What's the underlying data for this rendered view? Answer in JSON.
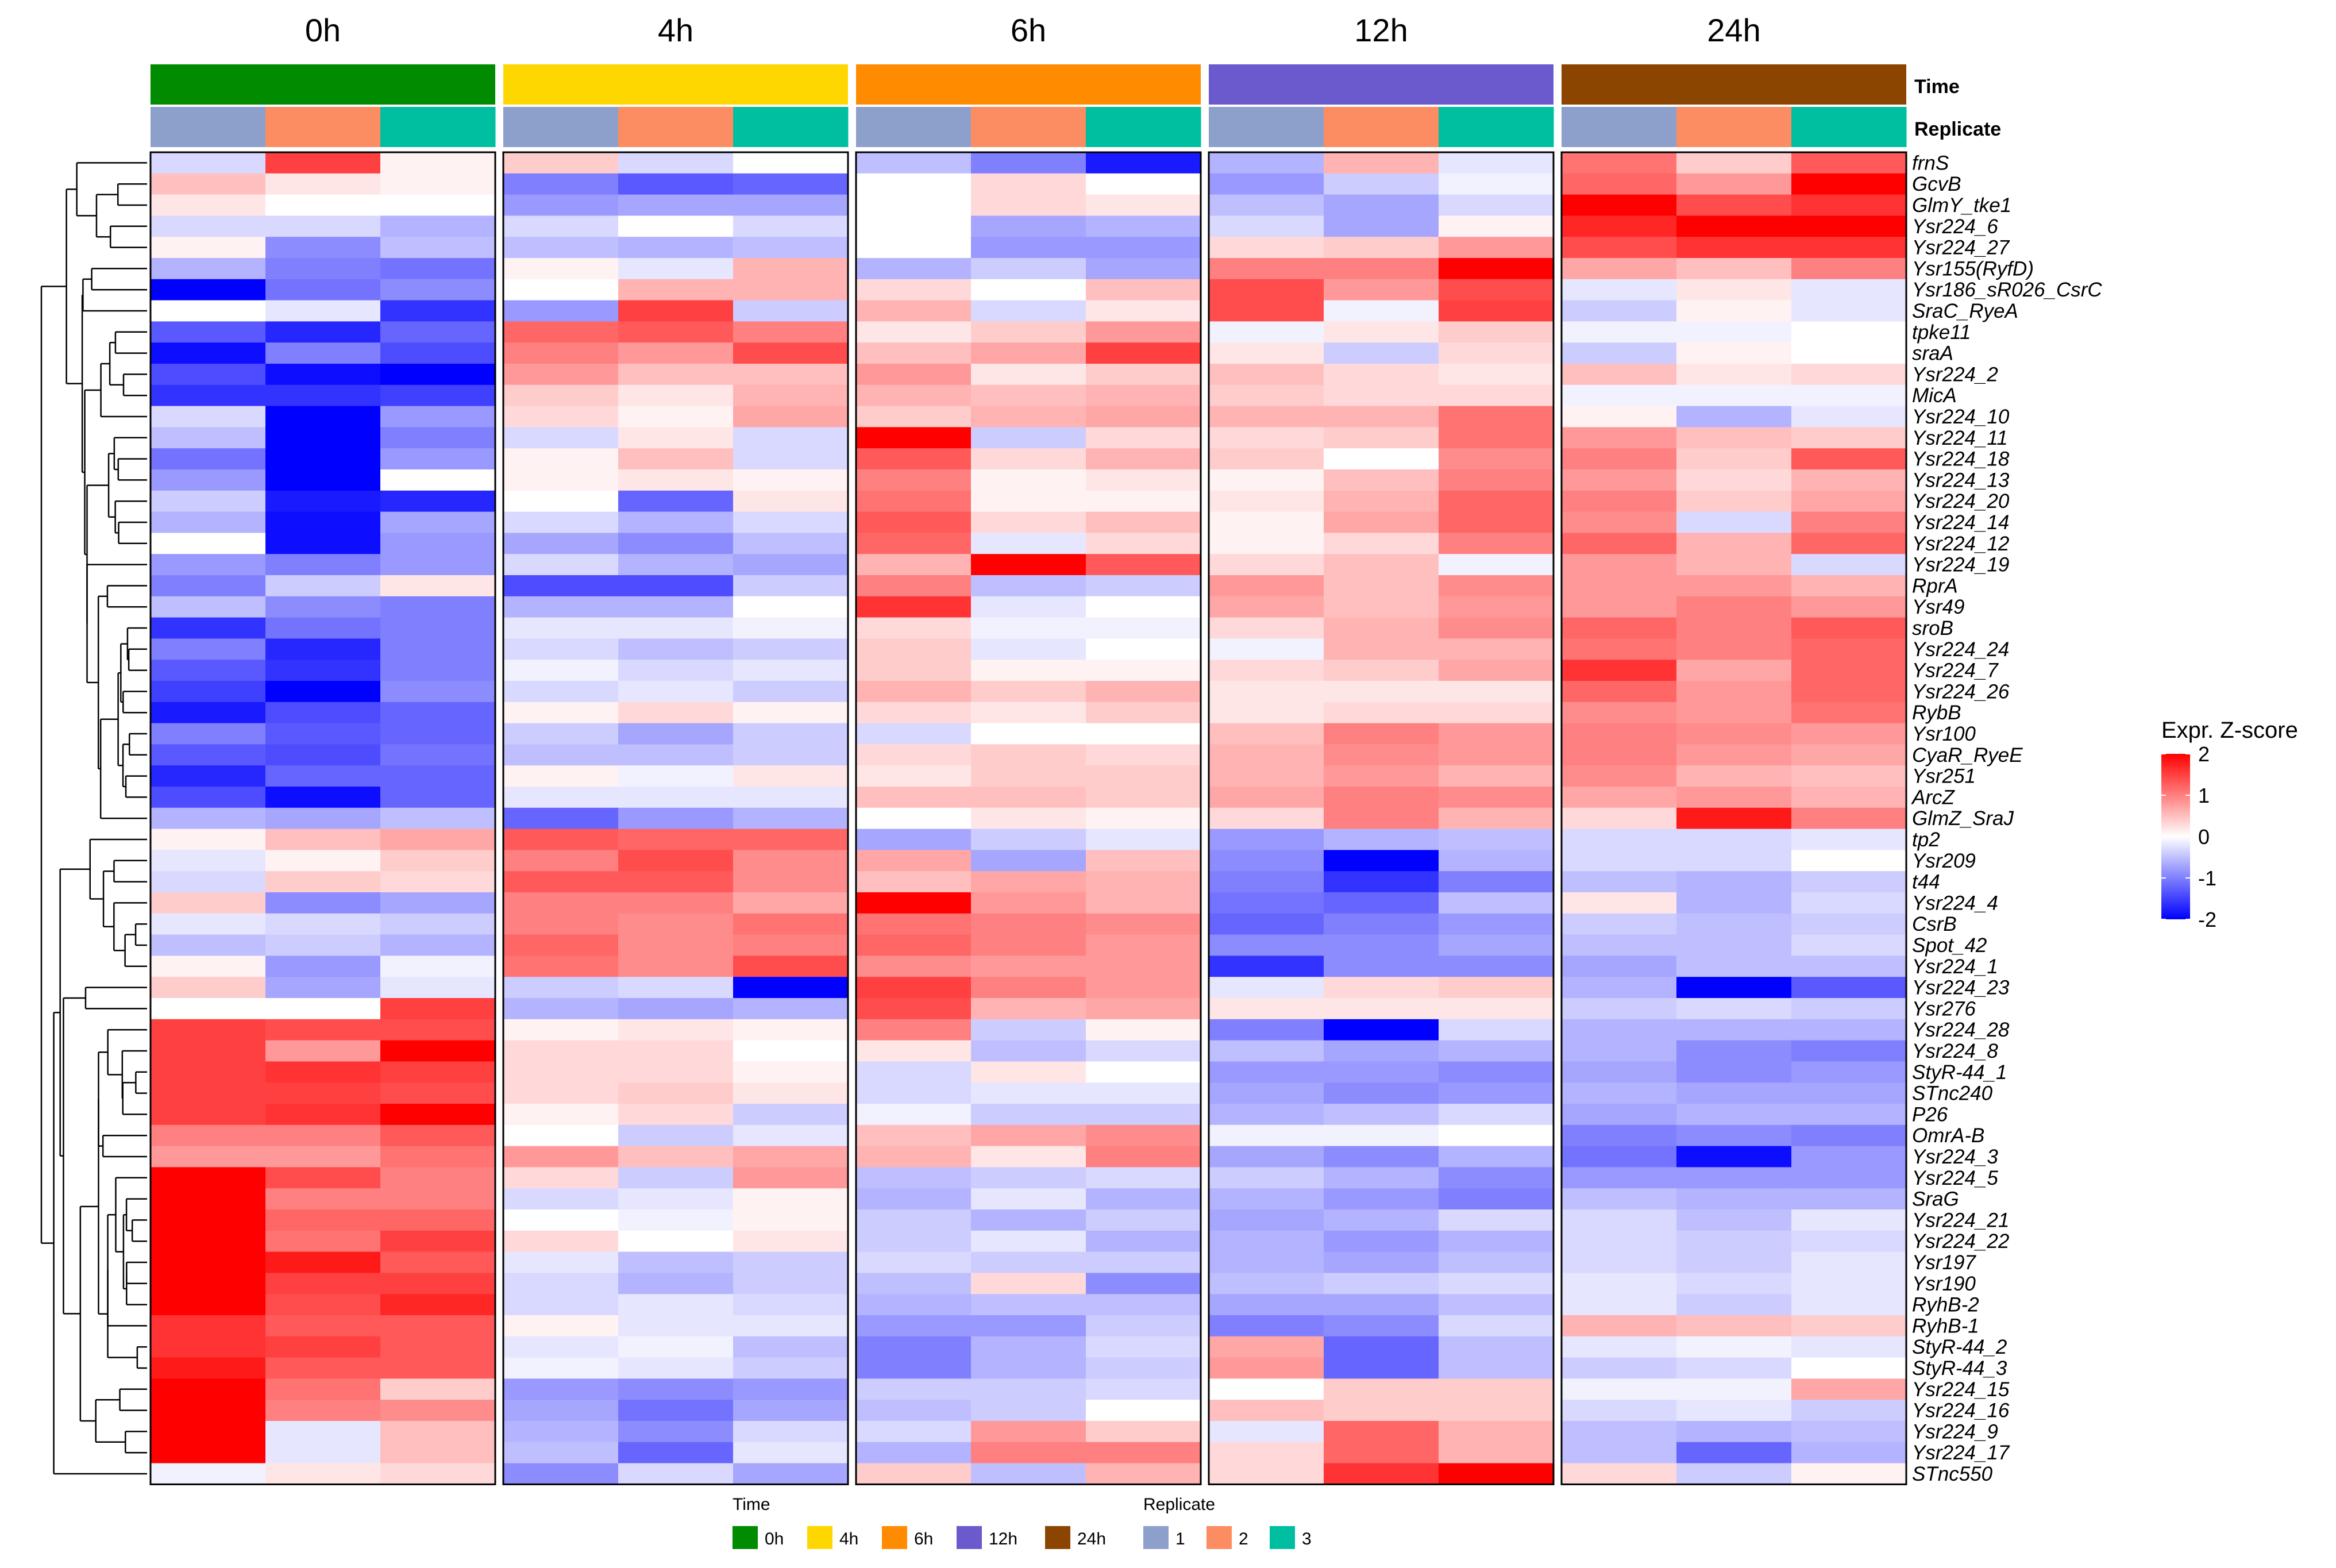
{
  "chart_data": {
    "type": "heatmap",
    "title": "",
    "time_groups": [
      "0h",
      "4h",
      "6h",
      "12h",
      "24h"
    ],
    "annotation_labels": {
      "time": "Time",
      "replicate": "Replicate"
    },
    "replicates": [
      "1",
      "2",
      "3"
    ],
    "time_colors": {
      "0h": "#008B00",
      "4h": "#FFD700",
      "6h": "#FF8C00",
      "12h": "#6A5ACD",
      "24h": "#8B4500"
    },
    "replicate_colors": {
      "1": "#8DA0CB",
      "2": "#FC8D62",
      "3": "#00BFA0"
    },
    "color_scale": {
      "title": "Expr. Z-score",
      "min": -2,
      "max": 2,
      "ticks": [
        2,
        1,
        0,
        -1,
        -2
      ],
      "low": "#0000FF",
      "mid": "#FFFFFF",
      "high": "#FF0000"
    },
    "legend": {
      "time_title": "Time",
      "replicate_title": "Replicate",
      "time_labels": [
        "0h",
        "4h",
        "6h",
        "12h",
        "24h"
      ],
      "replicate_labels": [
        "1",
        "2",
        "3"
      ]
    },
    "row_labels": [
      "frnS",
      "GcvB",
      "GlmY_tke1",
      "Ysr224_6",
      "Ysr224_27",
      "Ysr155(RyfD)",
      "Ysr186_sR026_CsrC",
      "SraC_RyeA",
      "tpke11",
      "sraA",
      "Ysr224_2",
      "MicA",
      "Ysr224_10",
      "Ysr224_11",
      "Ysr224_18",
      "Ysr224_13",
      "Ysr224_20",
      "Ysr224_14",
      "Ysr224_12",
      "Ysr224_19",
      "RprA",
      "Ysr49",
      "sroB",
      "Ysr224_24",
      "Ysr224_7",
      "Ysr224_26",
      "RybB",
      "Ysr100",
      "CyaR_RyeE",
      "Ysr251",
      "ArcZ",
      "GlmZ_SraJ",
      "tp2",
      "Ysr209",
      "t44",
      "Ysr224_4",
      "CsrB",
      "Spot_42",
      "Ysr224_1",
      "Ysr224_23",
      "Ysr276",
      "Ysr224_28",
      "Ysr224_8",
      "StyR-44_1",
      "STnc240",
      "P26",
      "OmrA-B",
      "Ysr224_3",
      "Ysr224_5",
      "SraG",
      "Ysr224_21",
      "Ysr224_22",
      "Ysr197",
      "Ysr190",
      "RyhB-2",
      "RyhB-1",
      "StyR-44_2",
      "StyR-44_3",
      "Ysr224_15",
      "Ysr224_16",
      "Ysr224_9",
      "Ysr224_17",
      "STnc550"
    ],
    "values": [
      [
        -0.3,
        1.5,
        0.1,
        0.4,
        -0.3,
        0.0,
        -0.5,
        -1.0,
        -1.8,
        -0.6,
        0.6,
        -0.2,
        1.1,
        0.4,
        1.3
      ],
      [
        0.5,
        0.2,
        0.1,
        -1.0,
        -1.3,
        -1.2,
        0.0,
        0.3,
        0.0,
        -0.8,
        -0.4,
        -0.1,
        1.2,
        0.8,
        2.0
      ],
      [
        0.2,
        0.0,
        0.0,
        -0.8,
        -0.7,
        -0.7,
        0.0,
        0.3,
        0.2,
        -0.5,
        -0.7,
        -0.3,
        2.0,
        1.4,
        1.6
      ],
      [
        -0.3,
        -0.3,
        -0.6,
        -0.3,
        0.0,
        -0.3,
        0.0,
        -0.7,
        -0.6,
        -0.3,
        -0.7,
        0.1,
        1.7,
        2.0,
        2.0
      ],
      [
        0.1,
        -0.9,
        -0.5,
        -0.5,
        -0.6,
        -0.5,
        0.0,
        -0.8,
        -0.8,
        0.3,
        0.4,
        0.8,
        1.4,
        1.6,
        1.6
      ],
      [
        -0.6,
        -1.0,
        -1.1,
        0.1,
        -0.2,
        0.6,
        -0.6,
        -0.4,
        -0.7,
        1.0,
        1.0,
        2.0,
        0.7,
        0.5,
        1.0
      ],
      [
        -2.0,
        -1.1,
        -0.9,
        0.0,
        0.6,
        0.6,
        0.3,
        0.0,
        0.5,
        1.4,
        0.8,
        1.4,
        -0.2,
        0.2,
        -0.2
      ],
      [
        0.0,
        -0.2,
        -1.6,
        -0.8,
        1.5,
        -0.4,
        0.6,
        -0.3,
        0.2,
        1.4,
        -0.1,
        1.5,
        -0.4,
        0.1,
        -0.2
      ],
      [
        -1.3,
        -1.7,
        -1.2,
        1.2,
        1.3,
        1.0,
        0.2,
        0.4,
        0.8,
        -0.1,
        0.2,
        0.4,
        -0.1,
        -0.1,
        0.0
      ],
      [
        -1.9,
        -1.0,
        -1.4,
        1.0,
        0.8,
        1.4,
        0.5,
        0.7,
        1.5,
        0.2,
        -0.4,
        0.3,
        -0.4,
        0.1,
        0.0
      ],
      [
        -1.4,
        -1.9,
        -2.0,
        0.8,
        0.5,
        0.5,
        0.8,
        0.2,
        0.4,
        0.5,
        0.3,
        0.2,
        0.5,
        0.2,
        0.3
      ],
      [
        -1.6,
        -1.6,
        -1.5,
        0.4,
        0.2,
        0.6,
        0.6,
        0.5,
        0.6,
        0.4,
        0.3,
        0.3,
        -0.1,
        -0.1,
        -0.1
      ],
      [
        -0.3,
        -2.0,
        -0.8,
        0.3,
        0.1,
        0.7,
        0.4,
        0.6,
        0.7,
        0.6,
        0.6,
        1.1,
        0.1,
        -0.6,
        -0.2
      ],
      [
        -0.5,
        -2.0,
        -1.0,
        -0.3,
        0.2,
        -0.3,
        2.0,
        -0.4,
        0.3,
        0.3,
        0.4,
        1.1,
        0.8,
        0.5,
        0.4
      ],
      [
        -1.1,
        -2.0,
        -0.8,
        0.1,
        0.5,
        -0.3,
        1.3,
        0.3,
        0.6,
        0.4,
        0.0,
        0.9,
        1.0,
        0.4,
        1.3
      ],
      [
        -0.8,
        -2.0,
        0.0,
        0.1,
        0.2,
        0.1,
        1.0,
        0.1,
        0.2,
        0.1,
        0.5,
        1.0,
        0.8,
        0.3,
        0.6
      ],
      [
        -0.4,
        -1.8,
        -1.7,
        0.0,
        -1.2,
        0.2,
        1.1,
        0.1,
        0.1,
        0.2,
        0.6,
        1.2,
        1.0,
        0.4,
        0.7
      ],
      [
        -0.6,
        -1.9,
        -0.7,
        -0.3,
        -0.6,
        -0.3,
        1.3,
        0.3,
        0.5,
        0.1,
        0.7,
        1.2,
        0.9,
        -0.3,
        1.0
      ],
      [
        0.0,
        -1.9,
        -0.8,
        -0.7,
        -0.9,
        -0.5,
        1.2,
        -0.2,
        0.3,
        0.1,
        0.3,
        1.0,
        1.2,
        0.6,
        1.2
      ],
      [
        -0.8,
        -1.0,
        -0.8,
        -0.3,
        -0.6,
        -0.7,
        0.6,
        2.0,
        1.3,
        0.3,
        0.5,
        -0.1,
        0.8,
        0.6,
        -0.3
      ],
      [
        -1.0,
        -0.4,
        0.2,
        -1.4,
        -1.4,
        -0.4,
        1.0,
        -0.5,
        -0.4,
        0.8,
        0.5,
        0.9,
        0.8,
        0.8,
        0.6
      ],
      [
        -0.5,
        -0.9,
        -1.0,
        -0.6,
        -0.6,
        0.0,
        1.6,
        -0.2,
        0.0,
        0.7,
        0.5,
        0.8,
        0.8,
        1.0,
        0.8
      ],
      [
        -1.6,
        -1.1,
        -1.0,
        -0.2,
        -0.2,
        -0.1,
        0.3,
        -0.1,
        -0.1,
        0.3,
        0.6,
        0.9,
        1.2,
        1.0,
        1.3
      ],
      [
        -1.0,
        -1.7,
        -1.0,
        -0.3,
        -0.5,
        -0.4,
        0.4,
        -0.2,
        0.0,
        -0.1,
        0.6,
        0.6,
        1.1,
        1.0,
        1.2
      ],
      [
        -1.3,
        -1.6,
        -1.0,
        -0.1,
        -0.3,
        -0.2,
        0.4,
        0.1,
        0.1,
        0.3,
        0.4,
        0.7,
        1.6,
        0.7,
        1.2
      ],
      [
        -1.5,
        -2.0,
        -0.9,
        -0.3,
        -0.2,
        -0.4,
        0.6,
        0.4,
        0.6,
        0.2,
        0.2,
        0.2,
        1.2,
        0.8,
        1.2
      ],
      [
        -1.8,
        -1.4,
        -1.2,
        0.1,
        0.3,
        0.1,
        0.3,
        0.2,
        0.4,
        0.2,
        0.3,
        0.3,
        0.9,
        0.8,
        1.1
      ],
      [
        -1.0,
        -1.3,
        -1.2,
        -0.4,
        -0.7,
        -0.4,
        -0.3,
        0.0,
        0.0,
        0.5,
        1.0,
        0.8,
        1.0,
        0.9,
        0.8
      ],
      [
        -1.3,
        -1.4,
        -1.1,
        -0.5,
        -0.5,
        -0.4,
        0.3,
        0.4,
        0.3,
        0.6,
        0.9,
        0.8,
        1.0,
        0.8,
        0.7
      ],
      [
        -1.7,
        -1.2,
        -1.2,
        0.1,
        -0.1,
        0.2,
        0.2,
        0.4,
        0.4,
        0.6,
        0.8,
        0.6,
        0.9,
        0.6,
        0.5
      ],
      [
        -1.4,
        -1.9,
        -1.2,
        -0.2,
        -0.2,
        -0.2,
        0.5,
        0.5,
        0.4,
        0.7,
        1.0,
        0.9,
        0.7,
        0.8,
        0.6
      ],
      [
        -0.6,
        -0.7,
        -0.5,
        -1.2,
        -0.8,
        -0.6,
        0.0,
        0.2,
        0.1,
        0.3,
        1.0,
        0.6,
        0.3,
        1.8,
        1.0
      ],
      [
        0.1,
        0.5,
        0.7,
        1.3,
        1.2,
        1.2,
        -0.7,
        -0.4,
        -0.2,
        -0.8,
        -0.6,
        -0.5,
        -0.3,
        -0.3,
        -0.2
      ],
      [
        -0.2,
        0.1,
        0.4,
        1.0,
        1.4,
        0.9,
        0.7,
        -0.7,
        0.5,
        -0.9,
        -2.0,
        -0.6,
        -0.3,
        -0.3,
        0.0
      ],
      [
        -0.3,
        0.4,
        0.3,
        1.3,
        1.3,
        0.9,
        0.5,
        0.7,
        0.6,
        -1.0,
        -1.6,
        -1.0,
        -0.5,
        -0.6,
        -0.4
      ],
      [
        0.4,
        -0.9,
        -0.7,
        1.0,
        1.0,
        0.7,
        2.0,
        0.8,
        0.6,
        -1.1,
        -1.2,
        -0.5,
        0.2,
        -0.6,
        -0.3
      ],
      [
        -0.2,
        -0.3,
        -0.4,
        1.0,
        0.9,
        1.1,
        1.1,
        1.0,
        0.9,
        -1.2,
        -1.0,
        -0.8,
        -0.4,
        -0.5,
        -0.4
      ],
      [
        -0.5,
        -0.4,
        -0.6,
        1.2,
        0.9,
        1.0,
        1.2,
        1.0,
        0.8,
        -0.9,
        -0.9,
        -0.7,
        -0.5,
        -0.5,
        -0.3
      ],
      [
        0.1,
        -0.8,
        -0.1,
        1.1,
        0.9,
        1.4,
        0.9,
        0.8,
        0.8,
        -1.6,
        -0.9,
        -0.9,
        -0.7,
        -0.5,
        -0.5
      ],
      [
        0.4,
        -0.7,
        -0.2,
        -0.4,
        -0.3,
        -2.0,
        1.5,
        1.0,
        0.8,
        -0.2,
        0.3,
        0.4,
        -0.6,
        -2.0,
        -1.3
      ],
      [
        0.0,
        0.0,
        1.5,
        -0.6,
        -0.7,
        -0.6,
        1.4,
        0.6,
        0.7,
        0.2,
        0.2,
        0.2,
        -0.4,
        -0.3,
        -0.4
      ],
      [
        1.5,
        1.4,
        1.4,
        0.1,
        0.2,
        0.1,
        1.0,
        -0.4,
        0.1,
        -1.0,
        -2.0,
        -0.3,
        -0.6,
        -0.6,
        -0.6
      ],
      [
        1.5,
        0.8,
        2.0,
        0.3,
        0.3,
        0.0,
        0.2,
        -0.5,
        -0.3,
        -0.5,
        -0.7,
        -0.6,
        -0.6,
        -0.9,
        -1.0
      ],
      [
        1.5,
        1.6,
        1.5,
        0.3,
        0.3,
        0.1,
        -0.3,
        0.2,
        0.0,
        -0.8,
        -0.8,
        -0.9,
        -0.7,
        -0.9,
        -0.8
      ],
      [
        1.5,
        1.5,
        1.4,
        0.3,
        0.4,
        0.2,
        -0.3,
        -0.2,
        -0.2,
        -0.7,
        -0.9,
        -0.8,
        -0.6,
        -0.7,
        -0.7
      ],
      [
        1.5,
        1.6,
        2.0,
        0.1,
        0.3,
        -0.4,
        -0.1,
        -0.4,
        -0.4,
        -0.6,
        -0.5,
        -0.3,
        -0.7,
        -0.6,
        -0.6
      ],
      [
        1.0,
        1.0,
        1.3,
        0.0,
        -0.4,
        -0.2,
        0.5,
        0.7,
        0.9,
        -0.1,
        -0.1,
        0.0,
        -1.0,
        -0.9,
        -1.0
      ],
      [
        0.8,
        0.8,
        1.1,
        0.8,
        0.5,
        0.7,
        0.6,
        0.2,
        1.0,
        -0.7,
        -0.9,
        -0.6,
        -1.1,
        -1.9,
        -0.8
      ],
      [
        2.0,
        1.4,
        1.0,
        0.3,
        -0.4,
        0.8,
        -0.5,
        -0.4,
        -0.3,
        -0.4,
        -0.6,
        -0.9,
        -0.8,
        -0.8,
        -0.8
      ],
      [
        2.0,
        1.0,
        1.0,
        -0.3,
        -0.2,
        0.1,
        -0.6,
        -0.2,
        -0.6,
        -0.6,
        -0.8,
        -1.0,
        -0.5,
        -0.6,
        -0.6
      ],
      [
        2.0,
        1.2,
        1.2,
        0.0,
        -0.1,
        0.1,
        -0.4,
        -0.6,
        -0.4,
        -0.7,
        -0.6,
        -0.3,
        -0.3,
        -0.5,
        -0.2
      ],
      [
        2.0,
        1.1,
        1.5,
        0.3,
        0.0,
        0.2,
        -0.4,
        -0.2,
        -0.6,
        -0.6,
        -0.8,
        -0.6,
        -0.3,
        -0.4,
        -0.3
      ],
      [
        2.0,
        1.8,
        1.3,
        -0.2,
        -0.5,
        -0.4,
        -0.3,
        -0.4,
        -0.4,
        -0.6,
        -0.7,
        -0.5,
        -0.3,
        -0.4,
        -0.2
      ],
      [
        2.0,
        1.5,
        1.5,
        -0.3,
        -0.6,
        -0.4,
        -0.5,
        0.3,
        -0.9,
        -0.5,
        -0.4,
        -0.3,
        -0.2,
        -0.3,
        -0.2
      ],
      [
        2.0,
        1.4,
        1.7,
        -0.3,
        -0.2,
        -0.3,
        -0.6,
        -0.5,
        -0.5,
        -0.7,
        -0.7,
        -0.5,
        -0.2,
        -0.4,
        -0.2
      ],
      [
        1.6,
        1.3,
        1.3,
        0.1,
        -0.2,
        -0.2,
        -0.8,
        -0.8,
        -0.4,
        -1.0,
        -0.9,
        -0.3,
        0.6,
        0.5,
        0.4
      ],
      [
        1.6,
        1.5,
        1.3,
        -0.2,
        -0.1,
        -0.5,
        -1.0,
        -0.6,
        -0.3,
        0.7,
        -1.2,
        -0.5,
        -0.2,
        -0.1,
        -0.2
      ],
      [
        1.8,
        1.3,
        1.3,
        -0.1,
        -0.2,
        -0.4,
        -1.0,
        -0.6,
        -0.4,
        0.8,
        -1.2,
        -0.5,
        -0.4,
        -0.3,
        0.0
      ],
      [
        2.0,
        1.1,
        0.4,
        -0.8,
        -0.9,
        -0.8,
        -0.4,
        -0.4,
        -0.3,
        0.0,
        0.4,
        0.4,
        -0.1,
        -0.1,
        0.7
      ],
      [
        2.0,
        1.0,
        0.9,
        -0.7,
        -1.1,
        -0.7,
        -0.5,
        -0.4,
        0.0,
        0.5,
        0.4,
        0.4,
        -0.3,
        -0.2,
        -0.4
      ],
      [
        2.0,
        -0.2,
        0.5,
        -0.6,
        -0.9,
        -0.3,
        -0.3,
        0.8,
        0.4,
        -0.2,
        1.2,
        0.6,
        -0.5,
        -0.6,
        -0.5
      ],
      [
        2.0,
        -0.2,
        0.5,
        -0.5,
        -1.2,
        -0.2,
        -0.6,
        1.0,
        1.0,
        0.3,
        1.2,
        0.6,
        -0.5,
        -1.2,
        -0.6
      ],
      [
        -0.1,
        0.2,
        0.3,
        -0.9,
        -0.3,
        -0.7,
        0.4,
        -0.5,
        0.6,
        0.3,
        1.6,
        2.0,
        0.3,
        -0.4,
        0.1
      ]
    ]
  }
}
